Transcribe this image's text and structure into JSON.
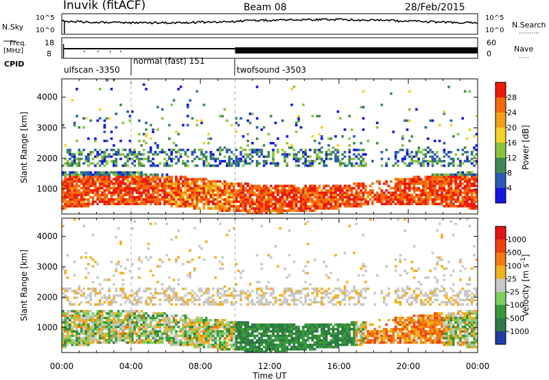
{
  "header": {
    "station": "Inuvik (fitACF)",
    "beam": "Beam 08",
    "date": "28/Feb/2015"
  },
  "strip_panels": {
    "nsky": {
      "label": "N.Sky",
      "right_label": "N.Search",
      "left_ticks": [
        "10^5",
        "10^0"
      ],
      "right_ticks": [
        "10^5",
        "10^0"
      ]
    },
    "freq": {
      "label_line1": "Freq.",
      "label_line2": "[MHz]",
      "left_ticks": [
        "18",
        "8"
      ],
      "right_label": "Nave",
      "right_ticks": [
        "60",
        "0"
      ]
    },
    "cpid": {
      "label": "CPID",
      "segments": [
        {
          "name": "ulfscan -3350",
          "start_hour": 0.0,
          "end_hour": 4.0
        },
        {
          "name": "normal (fast) 151",
          "start_hour": 4.0,
          "end_hour": 10.0
        },
        {
          "name": "twofsound -3503",
          "start_hour": 10.0,
          "end_hour": 24.0
        }
      ]
    }
  },
  "chart_data": [
    {
      "type": "heatmap",
      "parameter": "power",
      "ylabel": "Slant Range [km]",
      "ylim": [
        180,
        4600
      ],
      "yticks": [
        1000,
        2000,
        3000,
        4000
      ],
      "xlim": [
        0,
        24
      ],
      "colorbar_label": "Power [dB]",
      "colorbar_ticks": [
        "4",
        "8",
        "12",
        "16",
        "20",
        "24",
        "28"
      ],
      "colorbar_colors": [
        "#1414e6",
        "#2a5cb4",
        "#3f8a52",
        "#8ac23c",
        "#f2d22a",
        "#f2a018",
        "#f46a0c",
        "#ee1a0a"
      ]
    },
    {
      "type": "heatmap",
      "parameter": "velocity",
      "ylabel": "Slant Range [km]",
      "ylim": [
        180,
        4600
      ],
      "yticks": [
        1000,
        2000,
        3000,
        4000
      ],
      "xlim": [
        0,
        24
      ],
      "xlabel": "Time UT",
      "xticks": [
        "00:00",
        "04:00",
        "08:00",
        "12:00",
        "16:00",
        "20:00",
        "00:00"
      ],
      "colorbar_label": "Velocity [m s",
      "colorbar_label_sup": "-1",
      "colorbar_label_end": "]",
      "colorbar_ticks": [
        "1000",
        "500",
        "100",
        "25",
        "-25",
        "-100",
        "-500",
        "-1000"
      ],
      "colorbar_colors": [
        "#1e3ea6",
        "#2c7a44",
        "#3a9a3a",
        "#7fd060",
        "#c8c8c8",
        "#f0b020",
        "#f07a10",
        "#f04010",
        "#e61414"
      ]
    }
  ],
  "markers": {
    "dashed_lines_hours": [
      4.0,
      10.0
    ]
  }
}
